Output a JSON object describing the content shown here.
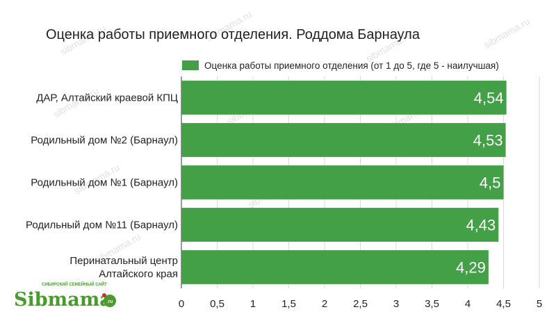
{
  "chart_data": {
    "type": "bar",
    "orientation": "horizontal",
    "title": "Оценка работы приемного отделения. Роддома Барнаула",
    "legend": {
      "position": "top-right"
    },
    "categories": [
      "ДАР, Алтайский краевой КПЦ",
      "Родильный дом №2 (Барнаул)",
      "Родильный дом №1 (Барнаул)",
      "Родильный дом №11 (Барнаул)",
      "Перинатальный центр Алтайского края"
    ],
    "series": [
      {
        "name": "Оценка работы приемного отделения (от 1 до 5, где 5 - наилучшая)",
        "values": [
          4.54,
          4.53,
          4.5,
          4.43,
          4.29
        ],
        "labels": [
          "4,54",
          "4,53",
          "4,5",
          "4,43",
          "4,29"
        ]
      }
    ],
    "xlim": [
      0,
      5
    ],
    "xticks": [
      0,
      0.5,
      1,
      1.5,
      2,
      2.5,
      3,
      3.5,
      4,
      4.5,
      5
    ],
    "xtick_labels": [
      "0",
      "0,5",
      "1",
      "1,5",
      "2",
      "2,5",
      "3",
      "3,5",
      "4",
      "4,5",
      "5"
    ],
    "grid": true,
    "bar_color": "#43a047"
  },
  "watermark": {
    "text": "sibmama.ru"
  },
  "logo": {
    "name": "Sibmama",
    "tagline": "СИБИРСКИЙ СЕМЕЙНЫЙ САЙТ",
    "suffix": ".ru"
  }
}
